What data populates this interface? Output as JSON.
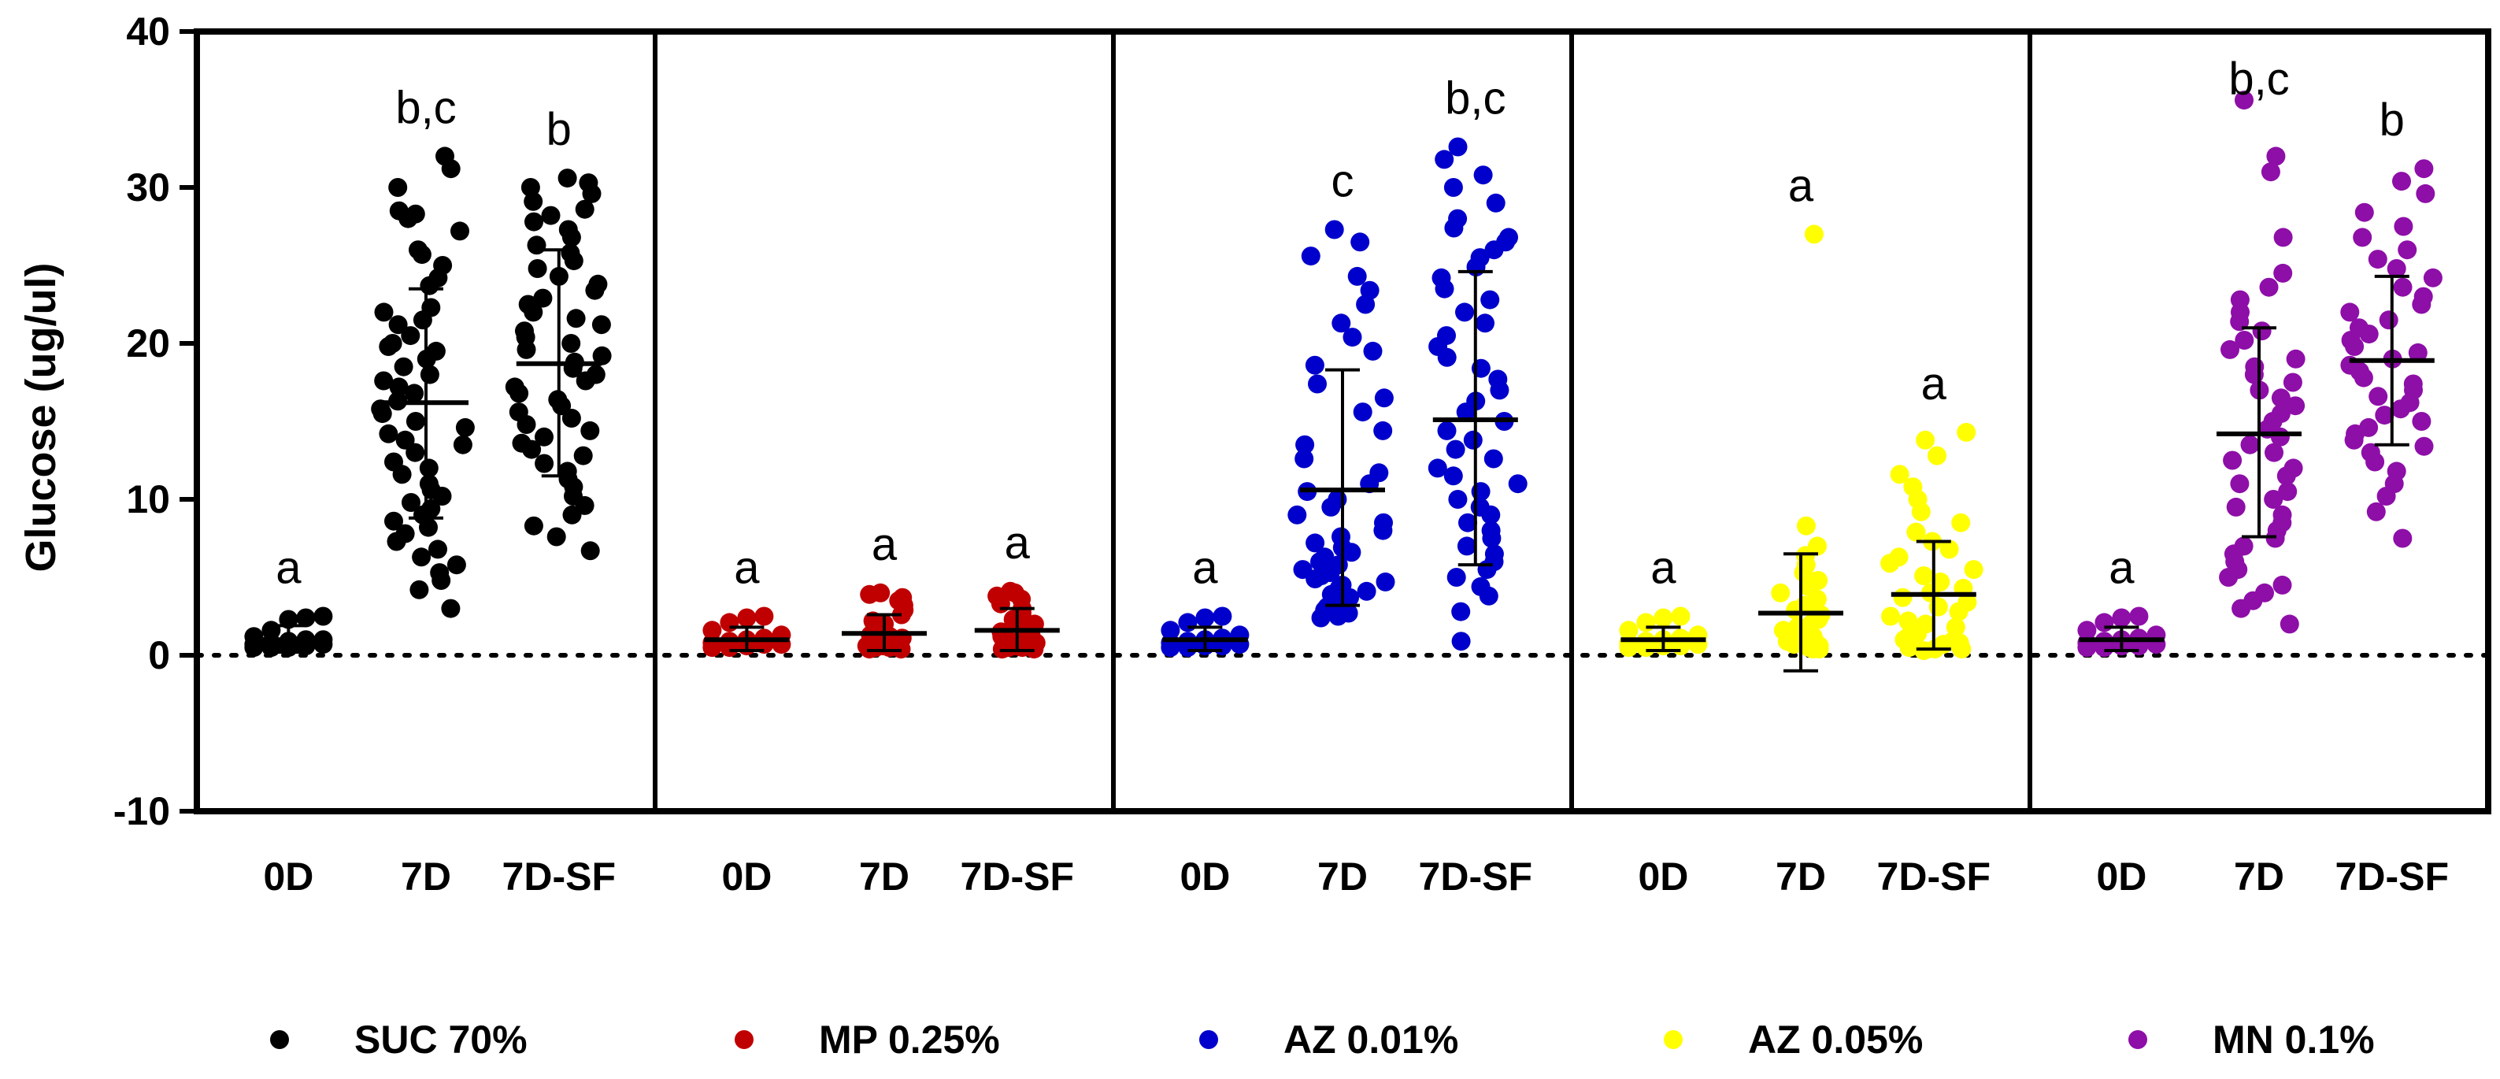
{
  "chart_data": {
    "type": "scatter",
    "ylabel": "Glucose (ug/ul)",
    "ylim": [
      -10,
      40
    ],
    "yticks": [
      -10,
      0,
      10,
      20,
      30,
      40
    ],
    "tick_labels": [
      "-10",
      "0",
      "10",
      "20",
      "30",
      "40"
    ],
    "reference_line_y": 0,
    "categories": [
      "0D",
      "7D",
      "7D-SF"
    ],
    "panels": [
      {
        "name": "SUC 70%",
        "color": "#000000",
        "groups": [
          {
            "category": "0D",
            "mean": 1.0,
            "sd_low": 0.2,
            "sd_high": 1.9,
            "sig": "a",
            "points": [
              0.5,
              0.5,
              0.5,
              0.6,
              0.7,
              0.7,
              0.8,
              0.9,
              1.0,
              1.0,
              1.2,
              1.6,
              2.3,
              2.4,
              2.5
            ]
          },
          {
            "category": "7D",
            "mean": 16.2,
            "sd_low": 8.8,
            "sd_high": 23.5,
            "sig": "b,c",
            "points": [
              32.0,
              31.2,
              30.0,
              28.5,
              28.3,
              28.0,
              27.2,
              26.0,
              25.7,
              25.0,
              24.2,
              23.7,
              22.3,
              22.0,
              21.5,
              21.2,
              20.5,
              20.0,
              19.8,
              19.5,
              19.0,
              18.5,
              18.0,
              17.6,
              17.2,
              16.8,
              16.3,
              15.8,
              15.5,
              15.0,
              14.6,
              14.2,
              13.8,
              13.5,
              13.0,
              12.4,
              12.0,
              11.6,
              11.0,
              10.6,
              10.2,
              9.8,
              9.4,
              9.0,
              8.6,
              8.2,
              7.8,
              7.3,
              6.8,
              6.3,
              5.8,
              5.3,
              4.8,
              4.2,
              3.0
            ]
          },
          {
            "category": "7D-SF",
            "mean": 18.7,
            "sd_low": 11.5,
            "sd_high": 26.0,
            "sig": "b",
            "points": [
              30.6,
              30.3,
              30.0,
              29.6,
              29.1,
              28.6,
              28.2,
              27.8,
              27.3,
              26.8,
              26.3,
              25.8,
              25.3,
              24.8,
              24.3,
              23.8,
              23.4,
              22.9,
              22.5,
              22.0,
              21.6,
              21.2,
              20.8,
              20.4,
              20.0,
              19.6,
              19.2,
              18.8,
              18.4,
              18.0,
              17.6,
              17.2,
              16.8,
              16.4,
              16.0,
              15.6,
              15.2,
              14.8,
              14.4,
              14.0,
              13.6,
              13.2,
              12.8,
              12.3,
              11.8,
              11.3,
              10.8,
              10.2,
              9.6,
              9.0,
              8.3,
              7.6,
              6.7
            ]
          }
        ]
      },
      {
        "name": "MP 0.25%",
        "color": "#c00000",
        "groups": [
          {
            "category": "0D",
            "mean": 1.0,
            "sd_low": 0.3,
            "sd_high": 1.8,
            "sig": "a",
            "points": [
              0.5,
              0.5,
              0.6,
              0.7,
              0.7,
              0.8,
              0.9,
              1.0,
              1.1,
              1.3,
              1.6,
              2.1,
              2.4,
              2.5
            ]
          },
          {
            "category": "7D",
            "mean": 1.4,
            "sd_low": 0.3,
            "sd_high": 2.6,
            "sig": "a",
            "points": [
              0.4,
              0.4,
              0.5,
              0.5,
              0.5,
              0.6,
              0.6,
              0.7,
              0.7,
              0.8,
              0.8,
              0.9,
              1.0,
              1.0,
              1.1,
              1.2,
              1.3,
              1.5,
              1.7,
              2.0,
              2.2,
              2.6,
              2.9,
              3.2,
              3.5,
              3.7,
              3.9,
              4.0
            ]
          },
          {
            "category": "7D-SF",
            "mean": 1.6,
            "sd_low": 0.3,
            "sd_high": 3.0,
            "sig": "a",
            "points": [
              0.4,
              0.4,
              0.5,
              0.5,
              0.6,
              0.6,
              0.7,
              0.7,
              0.8,
              0.8,
              0.9,
              1.0,
              1.0,
              1.1,
              1.2,
              1.3,
              1.5,
              1.7,
              2.0,
              2.3,
              2.7,
              3.0,
              3.3,
              3.6,
              3.8,
              4.0,
              4.1
            ]
          }
        ]
      },
      {
        "name": "AZ 0.01%",
        "color": "#0000cc",
        "groups": [
          {
            "category": "0D",
            "mean": 1.0,
            "sd_low": 0.3,
            "sd_high": 1.8,
            "sig": "a",
            "points": [
              0.5,
              0.5,
              0.6,
              0.6,
              0.7,
              0.8,
              0.9,
              1.0,
              1.1,
              1.3,
              1.6,
              2.1,
              2.4,
              2.5
            ]
          },
          {
            "category": "7D",
            "mean": 10.6,
            "sd_low": 3.2,
            "sd_high": 18.3,
            "sig": "c",
            "points": [
              27.3,
              26.5,
              25.6,
              24.3,
              23.4,
              22.5,
              21.3,
              20.4,
              19.5,
              18.6,
              17.4,
              16.5,
              15.6,
              14.4,
              13.5,
              12.6,
              11.7,
              11.0,
              10.5,
              10.0,
              9.5,
              9.0,
              8.5,
              8.0,
              7.6,
              7.2,
              6.9,
              6.6,
              6.3,
              6.0,
              5.8,
              5.5,
              5.3,
              5.1,
              4.9,
              4.7,
              4.5,
              4.3,
              4.1,
              3.9,
              3.7,
              3.5,
              3.3,
              3.1,
              2.9,
              2.7,
              2.5,
              2.4
            ]
          },
          {
            "category": "7D-SF",
            "mean": 15.1,
            "sd_low": 5.8,
            "sd_high": 24.6,
            "sig": "b,c",
            "points": [
              32.6,
              31.8,
              30.8,
              30.0,
              29.0,
              28.0,
              27.4,
              26.8,
              26.5,
              26.0,
              25.5,
              24.9,
              24.2,
              23.5,
              22.8,
              22.0,
              21.3,
              20.5,
              19.8,
              19.1,
              18.4,
              17.7,
              17.0,
              16.3,
              15.6,
              15.0,
              14.4,
              13.8,
              13.2,
              12.6,
              12.0,
              11.5,
              11.0,
              10.5,
              10.0,
              9.5,
              9.0,
              8.5,
              8.0,
              7.5,
              7.0,
              6.5,
              6.0,
              5.5,
              5.0,
              4.4,
              3.8,
              2.8,
              0.9
            ]
          }
        ]
      },
      {
        "name": "AZ 0.05%",
        "color": "#ffff00",
        "groups": [
          {
            "category": "0D",
            "mean": 1.0,
            "sd_low": 0.3,
            "sd_high": 1.8,
            "sig": "a",
            "points": [
              0.5,
              0.5,
              0.6,
              0.6,
              0.7,
              0.8,
              0.9,
              1.0,
              1.1,
              1.3,
              1.6,
              2.1,
              2.4,
              2.5
            ]
          },
          {
            "category": "7D",
            "mean": 2.7,
            "sd_low": -1.0,
            "sd_high": 6.5,
            "sig": "a",
            "points": [
              27.0,
              8.3,
              7.0,
              6.4,
              5.8,
              5.3,
              4.8,
              4.4,
              4.0,
              3.6,
              3.2,
              2.9,
              2.6,
              2.3,
              2.0,
              1.8,
              1.6,
              1.4,
              1.2,
              1.0,
              0.9,
              0.8,
              0.7,
              0.6,
              0.5,
              0.5,
              0.4,
              0.4
            ]
          },
          {
            "category": "7D-SF",
            "mean": 3.9,
            "sd_low": 0.4,
            "sd_high": 7.3,
            "sig": "a",
            "points": [
              14.3,
              13.8,
              12.8,
              11.6,
              10.8,
              10.0,
              9.2,
              8.5,
              7.9,
              7.3,
              6.8,
              6.3,
              5.9,
              5.5,
              5.1,
              4.7,
              4.3,
              4.0,
              3.7,
              3.4,
              3.1,
              2.8,
              2.5,
              2.2,
              2.0,
              1.8,
              1.6,
              1.4,
              1.2,
              1.0,
              0.9,
              0.8,
              0.7,
              0.6,
              0.5,
              0.4,
              0.4,
              0.3
            ]
          }
        ]
      },
      {
        "name": "MN 0.1%",
        "color": "#8e0ea8",
        "groups": [
          {
            "category": "0D",
            "mean": 1.0,
            "sd_low": 0.3,
            "sd_high": 1.8,
            "sig": "a",
            "points": [
              0.5,
              0.5,
              0.6,
              0.6,
              0.7,
              0.8,
              0.9,
              1.0,
              1.1,
              1.3,
              1.6,
              2.1,
              2.4,
              2.5
            ]
          },
          {
            "category": "7D",
            "mean": 14.2,
            "sd_low": 7.6,
            "sd_high": 21.0,
            "sig": "b,c",
            "points": [
              35.6,
              32.0,
              31.0,
              26.8,
              24.5,
              23.6,
              22.8,
              22.0,
              21.4,
              20.8,
              20.2,
              19.6,
              19.0,
              18.5,
              18.0,
              17.5,
              17.0,
              16.5,
              16.0,
              15.5,
              15.0,
              14.5,
              14.0,
              13.5,
              13.0,
              12.5,
              12.0,
              11.5,
              11.0,
              10.5,
              10.0,
              9.5,
              9.0,
              8.5,
              8.0,
              7.5,
              7.0,
              6.5,
              6.0,
              5.5,
              5.0,
              4.5,
              4.0,
              3.5,
              3.0,
              2.0
            ]
          },
          {
            "category": "7D-SF",
            "mean": 18.9,
            "sd_low": 13.5,
            "sd_high": 24.3,
            "sig": "b",
            "points": [
              31.2,
              30.4,
              29.6,
              28.4,
              27.5,
              26.8,
              26.0,
              25.4,
              24.8,
              24.2,
              23.6,
              23.0,
              22.5,
              22.0,
              21.5,
              21.0,
              20.6,
              20.2,
              19.8,
              19.4,
              19.0,
              18.6,
              18.2,
              17.8,
              17.4,
              17.0,
              16.6,
              16.2,
              15.8,
              15.4,
              15.0,
              14.6,
              14.2,
              13.8,
              13.4,
              13.0,
              12.4,
              11.8,
              11.0,
              10.2,
              9.2,
              7.5
            ]
          }
        ]
      }
    ],
    "legend": [
      {
        "label": "SUC 70%",
        "color": "#000000"
      },
      {
        "label": "MP 0.25%",
        "color": "#c00000"
      },
      {
        "label": "AZ 0.01%",
        "color": "#0000cc"
      },
      {
        "label": "AZ 0.05%",
        "color": "#ffff00"
      },
      {
        "label": "MN 0.1%",
        "color": "#8e0ea8"
      }
    ]
  }
}
